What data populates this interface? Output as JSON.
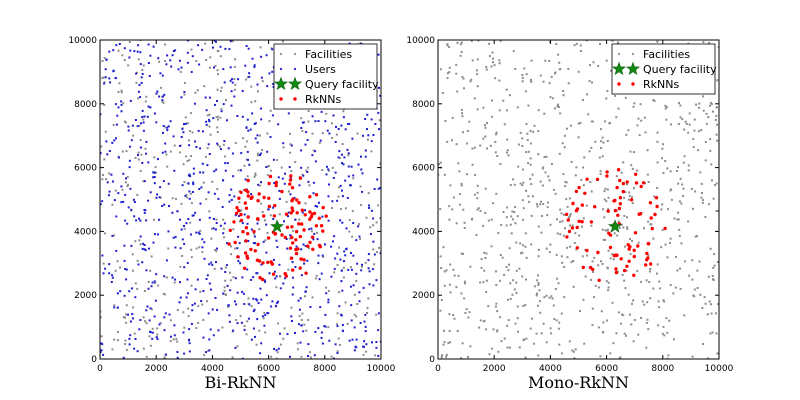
{
  "chart_data": [
    {
      "type": "scatter",
      "xlabel": "Bi-RkNN",
      "ylabel": "",
      "xlim": [
        0,
        10000
      ],
      "ylim": [
        0,
        10000
      ],
      "xticks": [
        "0",
        "2000",
        "4000",
        "6000",
        "8000",
        "10000"
      ],
      "yticks": [
        "0",
        "2000",
        "4000",
        "6000",
        "8000",
        "10000"
      ],
      "grid": false,
      "legend_position": "top-right",
      "series": [
        {
          "name": "Facilities",
          "marker": "dot",
          "color": "#8c8c8c",
          "count": 500,
          "distribution": "uniform over 0-10000 x 0-10000"
        },
        {
          "name": "Users",
          "marker": "dot",
          "color": "#1f1fd0",
          "count": 900,
          "distribution": "uniform over 0-10000 x 0-10000"
        },
        {
          "name": "Query facility",
          "marker": "star",
          "color": "#128a12",
          "points": [
            [
              6300,
              4150
            ]
          ]
        },
        {
          "name": "RkNNs",
          "marker": "dot",
          "color": "#ff0000",
          "count": 120,
          "distribution": "clustered around query facility, radius about 1800"
        }
      ]
    },
    {
      "type": "scatter",
      "xlabel": "Mono-RkNN",
      "ylabel": "",
      "xlim": [
        0,
        10000
      ],
      "ylim": [
        0,
        10000
      ],
      "xticks": [
        "0",
        "2000",
        "4000",
        "6000",
        "8000",
        "10000"
      ],
      "yticks": [
        "0",
        "2000",
        "4000",
        "6000",
        "8000",
        "10000"
      ],
      "grid": false,
      "legend_position": "top-right",
      "series": [
        {
          "name": "Facilities",
          "marker": "dot",
          "color": "#8c8c8c",
          "count": 900,
          "distribution": "uniform over 0-10000 x 0-10000"
        },
        {
          "name": "Query facility",
          "marker": "star",
          "color": "#128a12",
          "points": [
            [
              6300,
              4150
            ]
          ]
        },
        {
          "name": "RkNNs",
          "marker": "dot",
          "color": "#ff0000",
          "count": 85,
          "distribution": "clustered around query facility, radius about 1800"
        }
      ]
    }
  ]
}
